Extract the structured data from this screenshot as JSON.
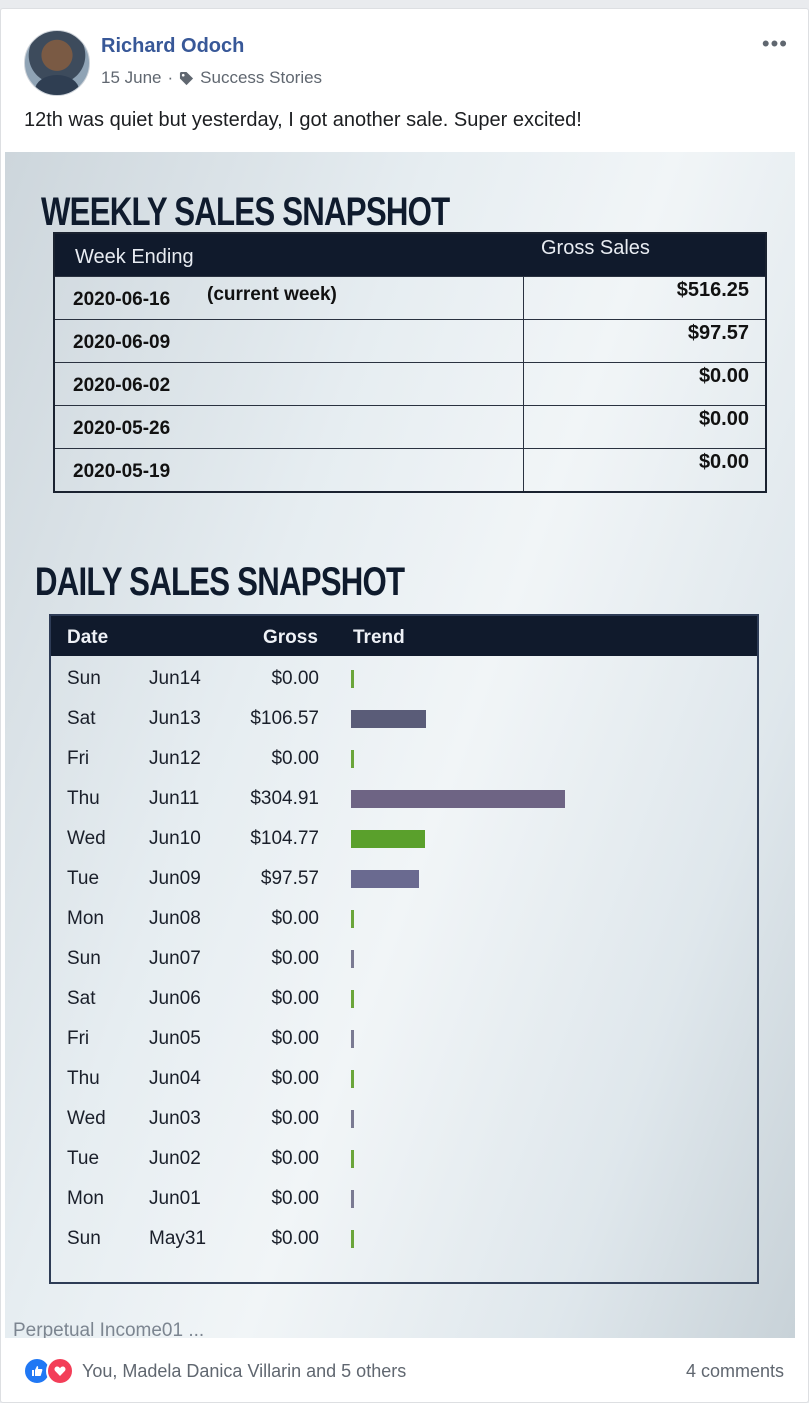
{
  "post": {
    "author": "Richard Odoch",
    "date": "15 June",
    "separator": "·",
    "group_tag": "Success Stories",
    "text": "12th was quiet but yesterday, I got another sale. Super excited!",
    "more_label": "•••"
  },
  "photo": {
    "weekly": {
      "title": "WEEKLY SALES SNAPSHOT",
      "col_week": "Week Ending",
      "col_gross": "Gross Sales",
      "rows": [
        {
          "date": "2020-06-16",
          "note": "(current week)",
          "amount": "$516.25"
        },
        {
          "date": "2020-06-09",
          "note": "",
          "amount": "$97.57"
        },
        {
          "date": "2020-06-02",
          "note": "",
          "amount": "$0.00"
        },
        {
          "date": "2020-05-26",
          "note": "",
          "amount": "$0.00"
        },
        {
          "date": "2020-05-19",
          "note": "",
          "amount": "$0.00"
        }
      ]
    },
    "daily": {
      "title": "DAILY SALES SNAPSHOT",
      "col_date": "Date",
      "col_gross": "Gross",
      "col_trend": "Trend",
      "rows": [
        {
          "day": "Sun",
          "date": "Jun14",
          "gross": "$0.00",
          "value": 0,
          "bar_color": "#6aa53a"
        },
        {
          "day": "Sat",
          "date": "Jun13",
          "gross": "$106.57",
          "value": 106.57,
          "bar_color": "#5a5c78"
        },
        {
          "day": "Fri",
          "date": "Jun12",
          "gross": "$0.00",
          "value": 0,
          "bar_color": "#6aa53a"
        },
        {
          "day": "Thu",
          "date": "Jun11",
          "gross": "$304.91",
          "value": 304.91,
          "bar_color": "#6e6484"
        },
        {
          "day": "Wed",
          "date": "Jun10",
          "gross": "$104.77",
          "value": 104.77,
          "bar_color": "#5aa02c"
        },
        {
          "day": "Tue",
          "date": "Jun09",
          "gross": "$97.57",
          "value": 97.57,
          "bar_color": "#6a6a90"
        },
        {
          "day": "Mon",
          "date": "Jun08",
          "gross": "$0.00",
          "value": 0,
          "bar_color": "#6aa53a"
        },
        {
          "day": "Sun",
          "date": "Jun07",
          "gross": "$0.00",
          "value": 0,
          "bar_color": "#7a7a92"
        },
        {
          "day": "Sat",
          "date": "Jun06",
          "gross": "$0.00",
          "value": 0,
          "bar_color": "#6aa53a"
        },
        {
          "day": "Fri",
          "date": "Jun05",
          "gross": "$0.00",
          "value": 0,
          "bar_color": "#7a7a92"
        },
        {
          "day": "Thu",
          "date": "Jun04",
          "gross": "$0.00",
          "value": 0,
          "bar_color": "#6aa53a"
        },
        {
          "day": "Wed",
          "date": "Jun03",
          "gross": "$0.00",
          "value": 0,
          "bar_color": "#7a7a92"
        },
        {
          "day": "Tue",
          "date": "Jun02",
          "gross": "$0.00",
          "value": 0,
          "bar_color": "#6aa53a"
        },
        {
          "day": "Mon",
          "date": "Jun01",
          "gross": "$0.00",
          "value": 0,
          "bar_color": "#7a7a92"
        },
        {
          "day": "Sun",
          "date": "May31",
          "gross": "$0.00",
          "value": 0,
          "bar_color": "#6aa53a"
        }
      ]
    },
    "footer_text": "Perpetual Income01 ..."
  },
  "reactions": {
    "summary": "You, Madela Danica Villarin and 5 others",
    "comments": "4 comments",
    "icons": [
      "like-icon",
      "love-icon"
    ]
  }
}
